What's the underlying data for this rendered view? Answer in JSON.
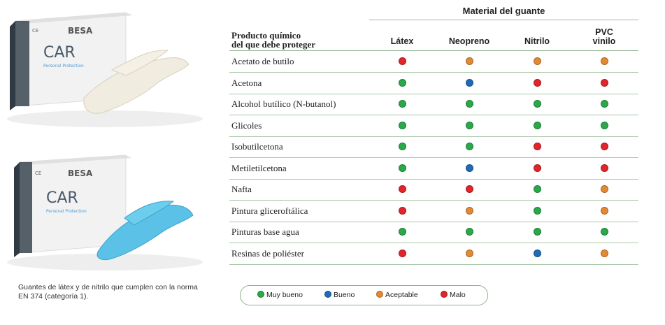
{
  "colors": {
    "muy_bueno": "#2aa84a",
    "bueno": "#1f6bb5",
    "aceptable": "#e28a33",
    "malo": "#e0252b"
  },
  "product_box_1": {
    "brand": "BESA",
    "name": "CAR",
    "subtitle": "Personal Protection",
    "ce": "CE"
  },
  "product_box_2": {
    "brand": "BESA",
    "name": "CAR",
    "subtitle": "Personal Protection",
    "ce": "CE"
  },
  "caption": "Guantes de látex y de nitrilo que cumplen con la norma EN 374 (categoría 1).",
  "table": {
    "material_header": "Material del guante",
    "product_header_line1": "Producto químico",
    "product_header_line2": "del que debe proteger",
    "columns": [
      {
        "line1": "Látex",
        "line2": ""
      },
      {
        "line1": "Neopreno",
        "line2": ""
      },
      {
        "line1": "Nitrilo",
        "line2": ""
      },
      {
        "line1": "PVC",
        "line2": "vinilo"
      }
    ],
    "rows": [
      {
        "chemical": "Acetato de butilo",
        "ratings": [
          "malo",
          "aceptable",
          "aceptable",
          "aceptable"
        ]
      },
      {
        "chemical": "Acetona",
        "ratings": [
          "muy_bueno",
          "bueno",
          "malo",
          "malo"
        ]
      },
      {
        "chemical": "Alcohol butílico (N-butanol)",
        "ratings": [
          "muy_bueno",
          "muy_bueno",
          "muy_bueno",
          "muy_bueno"
        ]
      },
      {
        "chemical": "Glicoles",
        "ratings": [
          "muy_bueno",
          "muy_bueno",
          "muy_bueno",
          "muy_bueno"
        ]
      },
      {
        "chemical": "Isobutilcetona",
        "ratings": [
          "muy_bueno",
          "muy_bueno",
          "malo",
          "malo"
        ]
      },
      {
        "chemical": "Metiletilcetona",
        "ratings": [
          "muy_bueno",
          "bueno",
          "malo",
          "malo"
        ]
      },
      {
        "chemical": "Nafta",
        "ratings": [
          "malo",
          "malo",
          "muy_bueno",
          "aceptable"
        ]
      },
      {
        "chemical": "Pintura gliceroftálica",
        "ratings": [
          "malo",
          "aceptable",
          "muy_bueno",
          "aceptable"
        ]
      },
      {
        "chemical": "Pinturas base agua",
        "ratings": [
          "muy_bueno",
          "muy_bueno",
          "muy_bueno",
          "muy_bueno"
        ]
      },
      {
        "chemical": "Resinas de poliéster",
        "ratings": [
          "malo",
          "aceptable",
          "bueno",
          "aceptable"
        ]
      }
    ]
  },
  "legend": [
    {
      "key": "muy_bueno",
      "label": "Muy bueno"
    },
    {
      "key": "bueno",
      "label": "Bueno"
    },
    {
      "key": "aceptable",
      "label": "Aceptable"
    },
    {
      "key": "malo",
      "label": "Malo"
    }
  ]
}
